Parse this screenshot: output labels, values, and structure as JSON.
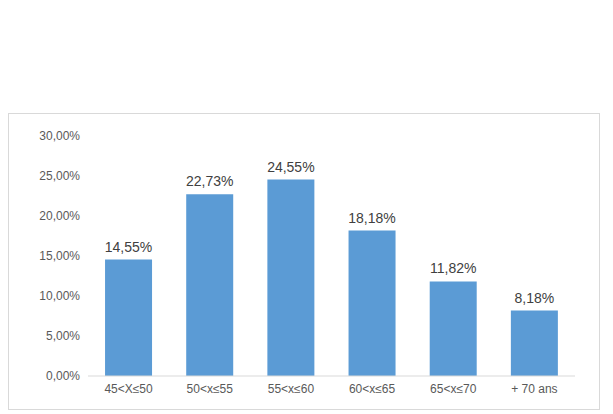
{
  "chart_data": {
    "type": "bar",
    "categories": [
      "45<X≤50",
      "50<x≤55",
      "55<x≤60",
      "60<x≤65",
      "65<x≤70",
      "+ 70 ans"
    ],
    "values": [
      14.55,
      22.73,
      24.55,
      18.18,
      11.82,
      8.18
    ],
    "value_labels": [
      "14,55%",
      "22,73%",
      "24,55%",
      "18,18%",
      "11,82%",
      "8,18%"
    ],
    "data_labels": true,
    "color": "#5b9bd5",
    "ylim": [
      0,
      30
    ],
    "yticks": [
      {
        "value": 0,
        "label": "0,00%"
      },
      {
        "value": 5,
        "label": "5,00%"
      },
      {
        "value": 10,
        "label": "10,00%"
      },
      {
        "value": 15,
        "label": "15,00%"
      },
      {
        "value": 20,
        "label": "20,00%"
      },
      {
        "value": 25,
        "label": "25,00%"
      },
      {
        "value": 30,
        "label": "30,00%"
      }
    ],
    "grid": false
  }
}
